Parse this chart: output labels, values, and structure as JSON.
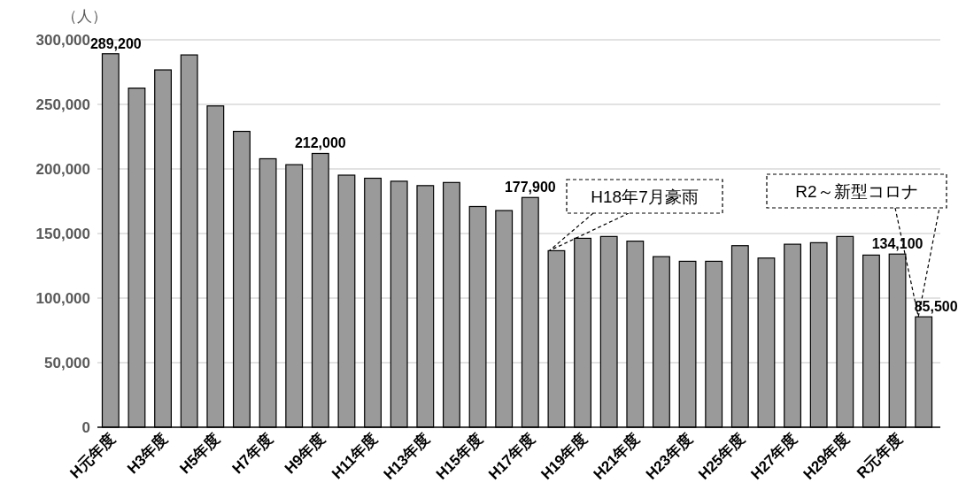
{
  "chart_data": {
    "type": "bar",
    "ylabel": "（人）",
    "categories": [
      "H元年度",
      null,
      "H3年度",
      null,
      "H5年度",
      null,
      "H7年度",
      null,
      "H9年度",
      null,
      "H11年度",
      null,
      "H13年度",
      null,
      "H15年度",
      null,
      "H17年度",
      null,
      "H19年度",
      null,
      "H21年度",
      null,
      "H23年度",
      null,
      "H25年度",
      null,
      "H27年度",
      null,
      "H29年度",
      null,
      "R元年度",
      null
    ],
    "values": [
      289200,
      262600,
      276700,
      288300,
      248800,
      229100,
      207900,
      203300,
      212000,
      195200,
      192800,
      190500,
      187100,
      189500,
      170900,
      167800,
      177900,
      136700,
      146300,
      147700,
      144100,
      132100,
      128500,
      128500,
      140600,
      131000,
      141700,
      142900,
      147700,
      133300,
      134100,
      85500
    ],
    "value_labels": [
      "289,200",
      null,
      null,
      null,
      null,
      null,
      null,
      null,
      "212,000",
      null,
      null,
      null,
      null,
      null,
      null,
      null,
      "177,900",
      null,
      null,
      null,
      null,
      null,
      null,
      null,
      null,
      null,
      null,
      null,
      null,
      null,
      "134,100",
      "85,500"
    ],
    "color": "#9a9a9a",
    "ylim": [
      0,
      300000
    ],
    "yticks": [
      {
        "value": 0,
        "label": "0"
      },
      {
        "value": 50000,
        "label": "50,000"
      },
      {
        "value": 100000,
        "label": "100,000"
      },
      {
        "value": 150000,
        "label": "150,000"
      },
      {
        "value": 200000,
        "label": "200,000"
      },
      {
        "value": 250000,
        "label": "250,000"
      },
      {
        "value": 300000,
        "label": "300,000"
      }
    ],
    "grid": "y",
    "annotations": [
      "H18年7月豪雨",
      "R2～新型コロナ"
    ]
  }
}
